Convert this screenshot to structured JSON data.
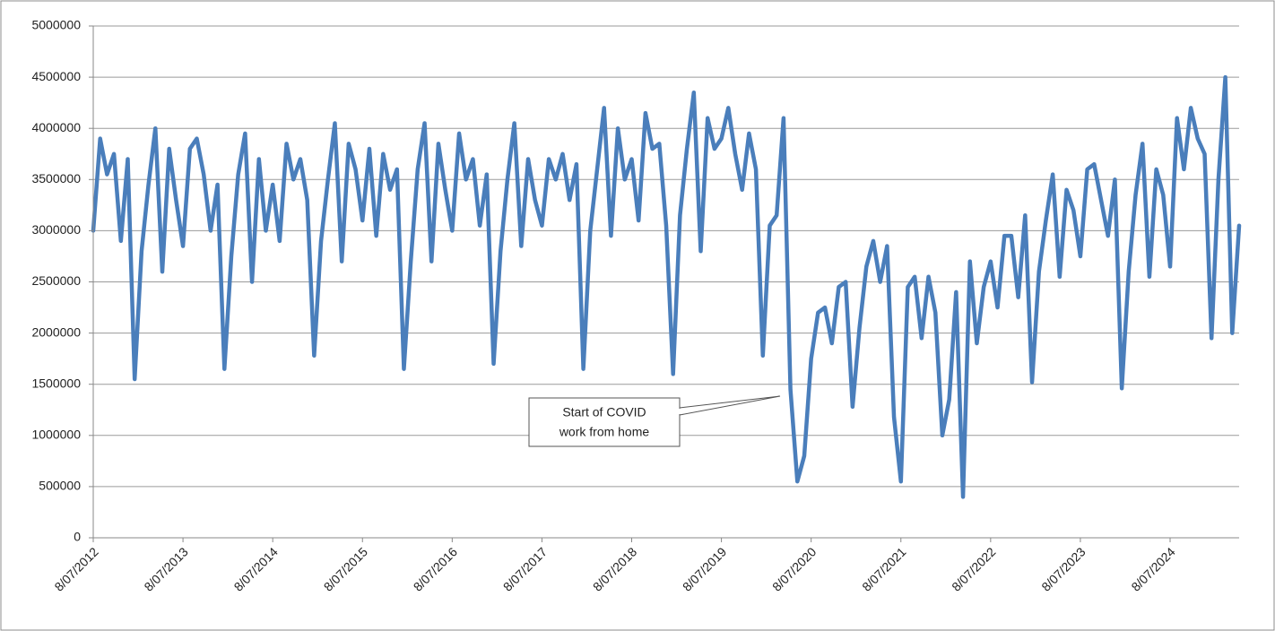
{
  "chart_data": {
    "type": "line",
    "categories": [
      "8/07/2012",
      null,
      null,
      null,
      null,
      null,
      null,
      null,
      null,
      null,
      null,
      null,
      null,
      "8/07/2013",
      null,
      null,
      null,
      null,
      null,
      null,
      null,
      null,
      null,
      null,
      null,
      null,
      "8/07/2014",
      null,
      null,
      null,
      null,
      null,
      null,
      null,
      null,
      null,
      null,
      null,
      null,
      "8/07/2015",
      null,
      null,
      null,
      null,
      null,
      null,
      null,
      null,
      null,
      null,
      null,
      null,
      "8/07/2016",
      null,
      null,
      null,
      null,
      null,
      null,
      null,
      null,
      null,
      null,
      null,
      null,
      "8/07/2017",
      null,
      null,
      null,
      null,
      null,
      null,
      null,
      null,
      null,
      null,
      null,
      null,
      "8/07/2018",
      null,
      null,
      null,
      null,
      null,
      null,
      null,
      null,
      null,
      null,
      null,
      null,
      "8/07/2019",
      null,
      null,
      null,
      null,
      null,
      null,
      null,
      null,
      null,
      null,
      null,
      null,
      "8/07/2020",
      null,
      null,
      null,
      null,
      null,
      null,
      null,
      null,
      null,
      null,
      null,
      null,
      "8/07/2021",
      null,
      null,
      null,
      null,
      null,
      null,
      null,
      null,
      null,
      null,
      null,
      null,
      "8/07/2022",
      null,
      null,
      null,
      null,
      null,
      null,
      null,
      null,
      null,
      null,
      null,
      null,
      "8/07/2023",
      null,
      null,
      null,
      null,
      null,
      null,
      null,
      null,
      null,
      null,
      null,
      null,
      "8/07/2024",
      null,
      null,
      null,
      null,
      null,
      null,
      null,
      null,
      null,
      null
    ],
    "values": [
      3000000,
      3900000,
      3550000,
      3750000,
      2900000,
      3700000,
      1550000,
      2800000,
      3450000,
      4000000,
      2600000,
      3800000,
      3300000,
      2850000,
      3800000,
      3900000,
      3550000,
      3000000,
      3450000,
      1650000,
      2750000,
      3550000,
      3950000,
      2500000,
      3700000,
      3000000,
      3450000,
      2900000,
      3850000,
      3500000,
      3700000,
      3300000,
      1780000,
      2900000,
      3500000,
      4050000,
      2700000,
      3850000,
      3600000,
      3100000,
      3800000,
      2950000,
      3750000,
      3400000,
      3600000,
      1650000,
      2700000,
      3600000,
      4050000,
      2700000,
      3850000,
      3400000,
      3000000,
      3950000,
      3500000,
      3700000,
      3050000,
      3550000,
      1700000,
      2800000,
      3500000,
      4050000,
      2850000,
      3700000,
      3300000,
      3050000,
      3700000,
      3500000,
      3750000,
      3300000,
      3650000,
      1650000,
      3000000,
      3600000,
      4200000,
      2950000,
      4000000,
      3500000,
      3700000,
      3100000,
      4150000,
      3800000,
      3850000,
      3050000,
      1600000,
      3150000,
      3800000,
      4350000,
      2800000,
      4100000,
      3800000,
      3900000,
      4200000,
      3750000,
      3400000,
      3950000,
      3600000,
      1780000,
      3050000,
      3150000,
      4100000,
      1450000,
      550000,
      800000,
      1750000,
      2200000,
      2250000,
      1900000,
      2450000,
      2500000,
      1280000,
      2050000,
      2650000,
      2900000,
      2500000,
      2850000,
      1180000,
      550000,
      2450000,
      2550000,
      1950000,
      2550000,
      2200000,
      1000000,
      1350000,
      2400000,
      400000,
      2700000,
      1900000,
      2450000,
      2700000,
      2250000,
      2950000,
      2950000,
      2350000,
      3150000,
      1520000,
      2600000,
      3100000,
      3550000,
      2550000,
      3400000,
      3200000,
      2750000,
      3600000,
      3650000,
      3300000,
      2950000,
      3500000,
      1460000,
      2600000,
      3350000,
      3850000,
      2550000,
      3600000,
      3350000,
      2650000,
      4100000,
      3600000,
      4200000,
      3900000,
      3750000,
      1950000,
      3500000,
      4500000,
      2000000,
      3050000
    ],
    "color": "#4a7ebb",
    "ylim": [
      0,
      5000000
    ],
    "yticks": [
      0,
      500000,
      1000000,
      1500000,
      2000000,
      2500000,
      3000000,
      3500000,
      4000000,
      4500000,
      5000000
    ],
    "grid": true,
    "annotation": [
      "Start of COVID",
      "work from home"
    ]
  }
}
